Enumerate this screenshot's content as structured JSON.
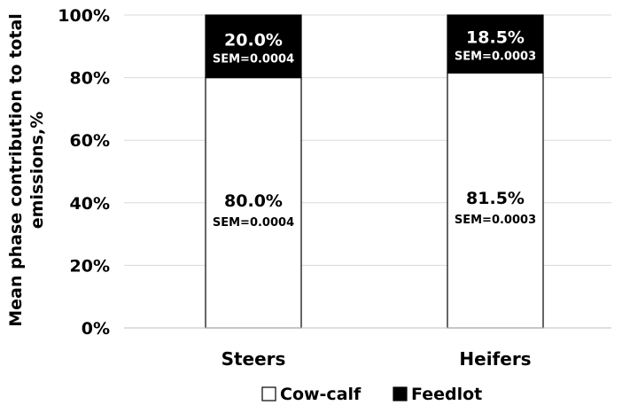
{
  "chart_data": {
    "type": "bar",
    "stacked": true,
    "title": "",
    "xlabel": "",
    "ylabel": "Mean phase contribution to total emissions,%",
    "ylabel_lines": [
      "Mean phase contribution to total",
      "emissions,%"
    ],
    "categories": [
      "Steers",
      "Heifers"
    ],
    "ylim": [
      0,
      100
    ],
    "yticks": [
      0,
      20,
      40,
      60,
      80,
      100
    ],
    "ytick_labels": [
      "0%",
      "20%",
      "40%",
      "60%",
      "80%",
      "100%"
    ],
    "grid": true,
    "legend_position": "bottom-center",
    "series": [
      {
        "name": "Cow-calf",
        "color": "#ffffff",
        "values": [
          80.0,
          81.5
        ],
        "labels": [
          "80.0%",
          "81.5%"
        ],
        "sem_labels": [
          "SEM=0.0004",
          "SEM=0.0003"
        ]
      },
      {
        "name": "Feedlot",
        "color": "#000000",
        "values": [
          20.0,
          18.5
        ],
        "labels": [
          "20.0%",
          "18.5%"
        ],
        "sem_labels": [
          "SEM=0.0004",
          "SEM=0.0003"
        ]
      }
    ]
  }
}
